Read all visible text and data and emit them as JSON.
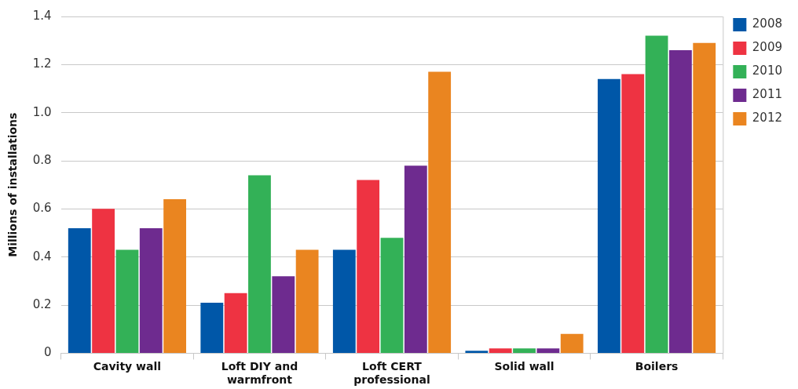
{
  "chart_data": {
    "type": "bar",
    "ylabel": "Millions of installations",
    "categories": [
      "Cavity wall",
      "Loft DIY and warmfront",
      "Loft CERT professional",
      "Solid wall",
      "Boilers"
    ],
    "series": [
      {
        "name": "2008",
        "color": "#0057a8",
        "values": [
          0.52,
          0.21,
          0.43,
          0.01,
          1.14
        ]
      },
      {
        "name": "2009",
        "color": "#ee3342",
        "values": [
          0.6,
          0.25,
          0.72,
          0.02,
          1.16
        ]
      },
      {
        "name": "2010",
        "color": "#33b157",
        "values": [
          0.43,
          0.74,
          0.48,
          0.02,
          1.32
        ]
      },
      {
        "name": "2011",
        "color": "#6e2b8f",
        "values": [
          0.52,
          0.32,
          0.78,
          0.02,
          1.26
        ]
      },
      {
        "name": "2012",
        "color": "#ea8520",
        "values": [
          0.64,
          0.43,
          1.17,
          0.08,
          1.29
        ]
      }
    ],
    "ylim": [
      0,
      1.4
    ],
    "yticks": [
      {
        "value": 0,
        "label": "0"
      },
      {
        "value": 0.2,
        "label": "0.2"
      },
      {
        "value": 0.4,
        "label": "0.4"
      },
      {
        "value": 0.6,
        "label": "0.6"
      },
      {
        "value": 0.8,
        "label": "0.8"
      },
      {
        "value": 1,
        "label": "1.0"
      },
      {
        "value": 1.2,
        "label": "1.2"
      },
      {
        "value": 1.4,
        "label": "1.4"
      }
    ],
    "grid": "y",
    "legend": "top right"
  }
}
